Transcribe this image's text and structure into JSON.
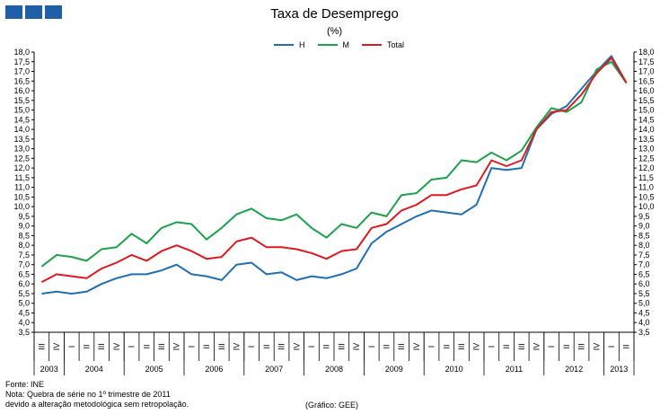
{
  "logo": {
    "icon": "three-blue-squares-logo-icon"
  },
  "chart_data": {
    "type": "line",
    "title": "Taxa de Desemprego",
    "subtitle": "(%)",
    "ylim": [
      3.5,
      18.0
    ],
    "ytick_step": 0.5,
    "yticks_both_sides": true,
    "grid": false,
    "legend_position": "top-center",
    "quarters": [
      "III",
      "IV",
      "I",
      "II",
      "III",
      "IV",
      "I",
      "II",
      "III",
      "IV",
      "I",
      "II",
      "III",
      "IV",
      "I",
      "II",
      "III",
      "IV",
      "I",
      "II",
      "III",
      "IV",
      "I",
      "II",
      "III",
      "IV",
      "I",
      "II",
      "III",
      "IV",
      "I",
      "II",
      "III",
      "IV",
      "I",
      "II",
      "III",
      "IV",
      "I",
      "II"
    ],
    "years": [
      {
        "label": "2003",
        "span": 2
      },
      {
        "label": "2004",
        "span": 4
      },
      {
        "label": "2005",
        "span": 4
      },
      {
        "label": "2006",
        "span": 4
      },
      {
        "label": "2007",
        "span": 4
      },
      {
        "label": "2008",
        "span": 4
      },
      {
        "label": "2009",
        "span": 4
      },
      {
        "label": "2010",
        "span": 4
      },
      {
        "label": "2011",
        "span": 4
      },
      {
        "label": "2012",
        "span": 4
      },
      {
        "label": "2013",
        "span": 2
      }
    ],
    "series": [
      {
        "name": "H",
        "color": "#1f6fb5",
        "values": [
          5.5,
          5.6,
          5.5,
          5.6,
          6.0,
          6.3,
          6.5,
          6.5,
          6.7,
          7.0,
          6.5,
          6.4,
          6.2,
          7.0,
          7.1,
          6.5,
          6.6,
          6.2,
          6.4,
          6.3,
          6.5,
          6.8,
          8.1,
          8.7,
          9.1,
          9.5,
          9.8,
          9.7,
          9.6,
          10.1,
          12.0,
          11.9,
          12.0,
          14.0,
          14.8,
          15.2,
          16.1,
          17.0,
          17.8,
          16.4
        ]
      },
      {
        "name": "M",
        "color": "#1aa34a",
        "values": [
          6.9,
          7.5,
          7.4,
          7.2,
          7.8,
          7.9,
          8.6,
          8.1,
          8.9,
          9.2,
          9.1,
          8.3,
          8.9,
          9.6,
          9.9,
          9.4,
          9.3,
          9.6,
          8.9,
          8.4,
          9.1,
          8.9,
          9.7,
          9.5,
          10.6,
          10.7,
          11.4,
          11.5,
          12.4,
          12.3,
          12.8,
          12.4,
          12.9,
          14.1,
          15.1,
          14.9,
          15.4,
          17.1,
          17.5,
          16.4
        ]
      },
      {
        "name": "Total",
        "color": "#e0191f",
        "values": [
          6.1,
          6.5,
          6.4,
          6.3,
          6.8,
          7.1,
          7.5,
          7.2,
          7.7,
          8.0,
          7.7,
          7.3,
          7.4,
          8.2,
          8.4,
          7.9,
          7.9,
          7.8,
          7.6,
          7.3,
          7.7,
          7.8,
          8.9,
          9.1,
          9.8,
          10.1,
          10.6,
          10.6,
          10.9,
          11.1,
          12.4,
          12.1,
          12.4,
          14.0,
          14.9,
          15.0,
          15.8,
          16.9,
          17.7,
          16.4
        ]
      }
    ]
  },
  "notes": {
    "source": "Fonte: INE",
    "note_line1": "Nota: Quebra de série no 1º trimestre de 2011",
    "note_line2": "devido a alteração metodológica sem retropolação."
  },
  "credit": "(Gráfico: GEE)"
}
